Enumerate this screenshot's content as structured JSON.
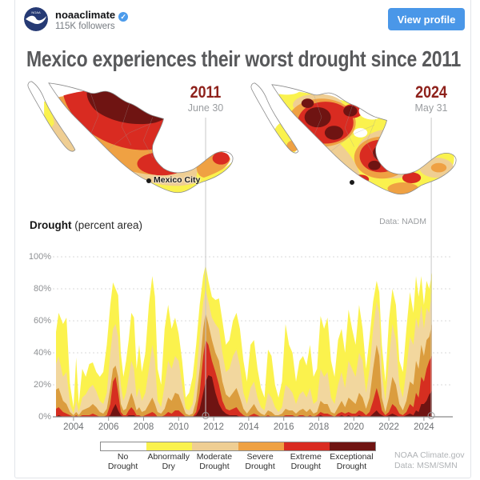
{
  "header": {
    "username": "noaaclimate",
    "verified_badge": "✓",
    "followers": "115K followers",
    "view_profile_label": "View profile"
  },
  "title": "Mexico experiences their worst drought since 2011",
  "maps": {
    "left": {
      "year": "2011",
      "date": "June 30",
      "city_label": "Mexico City"
    },
    "right": {
      "year": "2024",
      "date": "May 31"
    },
    "source": "Data: NADM"
  },
  "chart": {
    "heading_bold": "Drought",
    "heading_rest": " (percent area)",
    "credit_line1": "NOAA Climate.gov",
    "credit_line2": "Data: MSM/SMN"
  },
  "legend": {
    "items": [
      {
        "line1": "No",
        "line2": "Drought",
        "color": "#ffffff"
      },
      {
        "line1": "Abnormally",
        "line2": "Dry",
        "color": "#faf24e"
      },
      {
        "line1": "Moderate",
        "line2": "Drought",
        "color": "#efce93"
      },
      {
        "line1": "Severe",
        "line2": "Drought",
        "color": "#efa143"
      },
      {
        "line1": "Extreme",
        "line2": "Drought",
        "color": "#d92b21"
      },
      {
        "line1": "Exceptional",
        "line2": "Drought",
        "color": "#6f1412"
      }
    ]
  },
  "colors": {
    "accent_blue": "#4a97e8",
    "year_red": "#8e211b",
    "map_outline": "#8a8a8a",
    "gridline": "#d9d9d9",
    "axis": "#8a8a8a",
    "refline": "#c8c8c8"
  },
  "chart_data": {
    "type": "area",
    "stacked": "cumulative-nested",
    "title": "Drought (percent area)",
    "ylabel": "percent area",
    "ylim": [
      0,
      100
    ],
    "x_domain": [
      2003,
      2024.46
    ],
    "grid": true,
    "y_ticks": [
      {
        "v": 0,
        "label": "0%"
      },
      {
        "v": 20,
        "label": "20%"
      },
      {
        "v": 40,
        "label": "40%"
      },
      {
        "v": 60,
        "label": "60%"
      },
      {
        "v": 80,
        "label": "80%"
      },
      {
        "v": 100,
        "label": "100%"
      }
    ],
    "x_ticks": [
      2004,
      2006,
      2008,
      2010,
      2012,
      2014,
      2016,
      2018,
      2020,
      2022,
      2024
    ],
    "reference_lines": [
      {
        "x": 2011.54,
        "label": "2011 June 30"
      },
      {
        "x": 2024.42,
        "label": "2024 May 31"
      }
    ],
    "x": [
      2003.0,
      2003.15,
      2003.4,
      2003.6,
      2003.8,
      2004.0,
      2004.15,
      2004.3,
      2004.5,
      2004.7,
      2004.9,
      2005.1,
      2005.3,
      2005.5,
      2005.7,
      2005.9,
      2006.1,
      2006.25,
      2006.4,
      2006.55,
      2006.7,
      2006.85,
      2007.0,
      2007.15,
      2007.3,
      2007.45,
      2007.6,
      2007.75,
      2007.9,
      2008.1,
      2008.3,
      2008.5,
      2008.65,
      2008.8,
      2009.0,
      2009.2,
      2009.4,
      2009.6,
      2009.8,
      2010.0,
      2010.2,
      2010.4,
      2010.6,
      2010.8,
      2011.0,
      2011.2,
      2011.4,
      2011.54,
      2011.7,
      2011.9,
      2012.1,
      2012.3,
      2012.5,
      2012.7,
      2012.9,
      2013.1,
      2013.3,
      2013.5,
      2013.7,
      2013.9,
      2014.1,
      2014.3,
      2014.5,
      2014.7,
      2014.9,
      2015.1,
      2015.3,
      2015.5,
      2015.7,
      2015.9,
      2016.1,
      2016.3,
      2016.5,
      2016.7,
      2016.9,
      2017.1,
      2017.3,
      2017.5,
      2017.7,
      2017.9,
      2018.1,
      2018.3,
      2018.5,
      2018.7,
      2018.9,
      2019.1,
      2019.3,
      2019.5,
      2019.7,
      2019.9,
      2020.1,
      2020.3,
      2020.5,
      2020.7,
      2020.9,
      2021.1,
      2021.3,
      2021.45,
      2021.6,
      2021.8,
      2022.0,
      2022.2,
      2022.4,
      2022.6,
      2022.8,
      2023.0,
      2023.2,
      2023.4,
      2023.55,
      2023.7,
      2023.85,
      2024.0,
      2024.15,
      2024.3,
      2024.46
    ],
    "series": [
      {
        "name": "Abnormally Dry or worse",
        "color": "#fbf24d",
        "values": [
          53,
          65,
          58,
          62,
          20,
          6,
          37,
          8,
          30,
          25,
          33,
          34,
          28,
          25,
          28,
          45,
          70,
          84,
          80,
          76,
          40,
          25,
          35,
          48,
          65,
          62,
          30,
          45,
          28,
          40,
          70,
          88,
          75,
          30,
          20,
          55,
          70,
          55,
          62,
          52,
          35,
          12,
          15,
          25,
          45,
          70,
          88,
          95,
          85,
          75,
          73,
          74,
          60,
          45,
          48,
          60,
          65,
          55,
          35,
          22,
          45,
          48,
          30,
          18,
          12,
          42,
          38,
          20,
          12,
          22,
          58,
          45,
          40,
          22,
          35,
          38,
          32,
          45,
          25,
          30,
          63,
          55,
          62,
          35,
          25,
          48,
          55,
          40,
          67,
          55,
          45,
          70,
          55,
          30,
          50,
          72,
          85,
          78,
          45,
          22,
          60,
          80,
          70,
          35,
          28,
          55,
          78,
          65,
          88,
          75,
          88,
          70,
          85,
          80,
          90
        ]
      },
      {
        "name": "Moderate Drought or worse",
        "color": "#f2d79e",
        "values": [
          33,
          38,
          25,
          28,
          8,
          2,
          10,
          3,
          12,
          14,
          18,
          20,
          16,
          10,
          8,
          15,
          40,
          55,
          58,
          50,
          20,
          10,
          15,
          25,
          35,
          30,
          12,
          18,
          10,
          15,
          30,
          45,
          35,
          10,
          6,
          20,
          35,
          30,
          38,
          35,
          20,
          5,
          4,
          8,
          25,
          50,
          72,
          80,
          72,
          62,
          58,
          55,
          40,
          28,
          30,
          38,
          42,
          32,
          15,
          8,
          18,
          22,
          12,
          6,
          4,
          15,
          12,
          6,
          3,
          6,
          20,
          18,
          15,
          8,
          14,
          16,
          12,
          18,
          8,
          10,
          30,
          25,
          28,
          12,
          8,
          20,
          28,
          18,
          35,
          30,
          25,
          40,
          35,
          15,
          30,
          55,
          72,
          65,
          28,
          10,
          35,
          58,
          48,
          20,
          12,
          30,
          50,
          45,
          62,
          55,
          70,
          55,
          68,
          65,
          78
        ]
      },
      {
        "name": "Severe Drought or worse",
        "color": "#db9d3e",
        "values": [
          17,
          18,
          10,
          8,
          3,
          1,
          3,
          1,
          4,
          5,
          6,
          8,
          6,
          3,
          2,
          5,
          18,
          30,
          32,
          25,
          8,
          4,
          5,
          10,
          15,
          10,
          4,
          6,
          3,
          4,
          8,
          12,
          8,
          3,
          2,
          5,
          12,
          10,
          15,
          14,
          8,
          2,
          1,
          2,
          10,
          30,
          55,
          65,
          58,
          48,
          40,
          35,
          22,
          14,
          12,
          15,
          18,
          12,
          5,
          2,
          5,
          8,
          4,
          2,
          1,
          4,
          3,
          1,
          1,
          2,
          5,
          4,
          4,
          2,
          4,
          5,
          3,
          5,
          2,
          3,
          10,
          8,
          8,
          3,
          2,
          6,
          10,
          6,
          12,
          10,
          8,
          15,
          12,
          5,
          12,
          30,
          45,
          38,
          12,
          3,
          12,
          25,
          20,
          8,
          4,
          10,
          22,
          20,
          35,
          30,
          45,
          38,
          48,
          50,
          58
        ]
      },
      {
        "name": "Extreme Drought or worse",
        "color": "#d62e20",
        "values": [
          5,
          6,
          3,
          2,
          1,
          0,
          1,
          0,
          1,
          1,
          1,
          2,
          1,
          0,
          0,
          1,
          8,
          22,
          25,
          15,
          3,
          1,
          1,
          4,
          6,
          4,
          1,
          1,
          0,
          1,
          2,
          3,
          2,
          0,
          0,
          1,
          3,
          2,
          4,
          4,
          2,
          0,
          0,
          0,
          3,
          15,
          38,
          48,
          45,
          35,
          28,
          20,
          10,
          5,
          4,
          5,
          6,
          3,
          1,
          0,
          1,
          2,
          1,
          0,
          0,
          1,
          0,
          0,
          0,
          0,
          1,
          1,
          1,
          0,
          1,
          1,
          0,
          1,
          0,
          1,
          3,
          2,
          2,
          1,
          0,
          2,
          3,
          2,
          3,
          2,
          2,
          4,
          3,
          1,
          3,
          10,
          18,
          12,
          4,
          1,
          3,
          8,
          6,
          2,
          1,
          3,
          8,
          6,
          15,
          12,
          25,
          22,
          30,
          35,
          38
        ]
      },
      {
        "name": "Exceptional Drought",
        "color": "#6f1412",
        "values": [
          0,
          1,
          0,
          0,
          0,
          0,
          0,
          0,
          0,
          0,
          0,
          0,
          0,
          0,
          0,
          0,
          1,
          5,
          8,
          4,
          1,
          0,
          0,
          1,
          1,
          1,
          0,
          0,
          0,
          0,
          0,
          0,
          0,
          0,
          0,
          0,
          0,
          0,
          0,
          0,
          0,
          0,
          0,
          0,
          1,
          5,
          15,
          22,
          26,
          25,
          15,
          8,
          4,
          2,
          1,
          1,
          1,
          0,
          0,
          0,
          0,
          0,
          0,
          0,
          0,
          0,
          0,
          0,
          0,
          0,
          0,
          0,
          0,
          0,
          0,
          0,
          0,
          0,
          0,
          0,
          1,
          0,
          0,
          0,
          0,
          0,
          1,
          0,
          1,
          0,
          0,
          1,
          0,
          0,
          0,
          2,
          4,
          2,
          1,
          0,
          1,
          2,
          1,
          0,
          0,
          1,
          2,
          1,
          4,
          3,
          8,
          8,
          10,
          14,
          16
        ]
      }
    ]
  }
}
